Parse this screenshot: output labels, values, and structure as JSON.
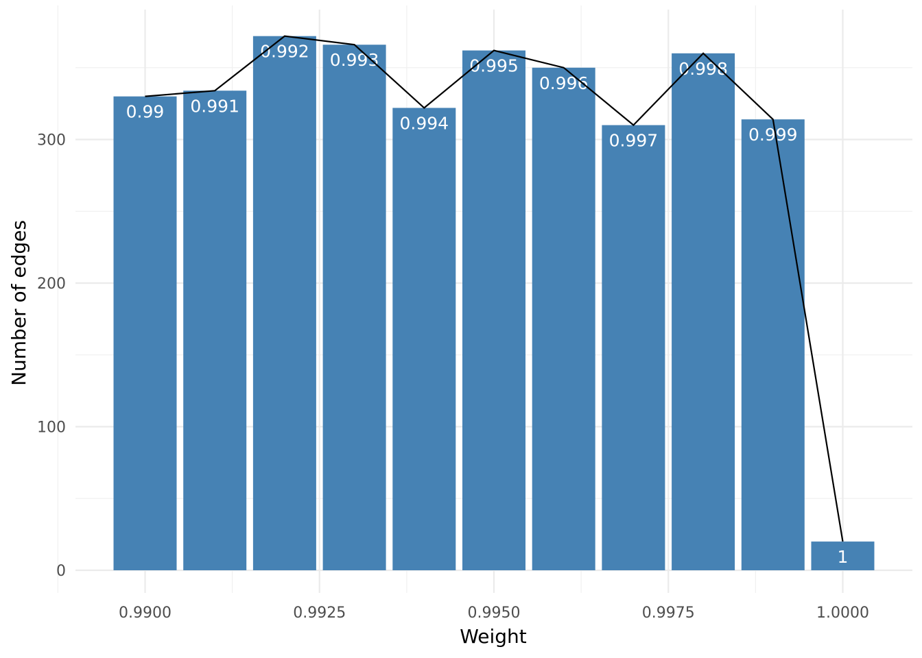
{
  "chart_data": {
    "type": "bar",
    "title": "",
    "xlabel": "Weight",
    "ylabel": "Number of edges",
    "x": [
      0.99,
      0.991,
      0.992,
      0.993,
      0.994,
      0.995,
      0.996,
      0.997,
      0.998,
      0.999,
      1.0
    ],
    "values": [
      330,
      334,
      372,
      366,
      322,
      362,
      350,
      310,
      360,
      314,
      20
    ],
    "bar_labels": [
      "0.99",
      "0.991",
      "0.992",
      "0.993",
      "0.994",
      "0.995",
      "0.996",
      "0.997",
      "0.998",
      "0.999",
      "1"
    ],
    "overlay_line": {
      "type": "line",
      "color": "#000000"
    },
    "bar_color": "#4682b4",
    "xlim": [
      0.9895,
      1.0005
    ],
    "ylim": [
      0,
      385
    ],
    "x_ticks": [
      {
        "value": 0.99,
        "label": "0.9900"
      },
      {
        "value": 0.9925,
        "label": "0.9925"
      },
      {
        "value": 0.995,
        "label": "0.9950"
      },
      {
        "value": 0.9975,
        "label": "0.9975"
      },
      {
        "value": 1.0,
        "label": "1.0000"
      }
    ],
    "y_ticks": [
      {
        "value": 0,
        "label": "0"
      },
      {
        "value": 100,
        "label": "100"
      },
      {
        "value": 200,
        "label": "200"
      },
      {
        "value": 300,
        "label": "300"
      }
    ],
    "grid": true,
    "legend": "none"
  }
}
